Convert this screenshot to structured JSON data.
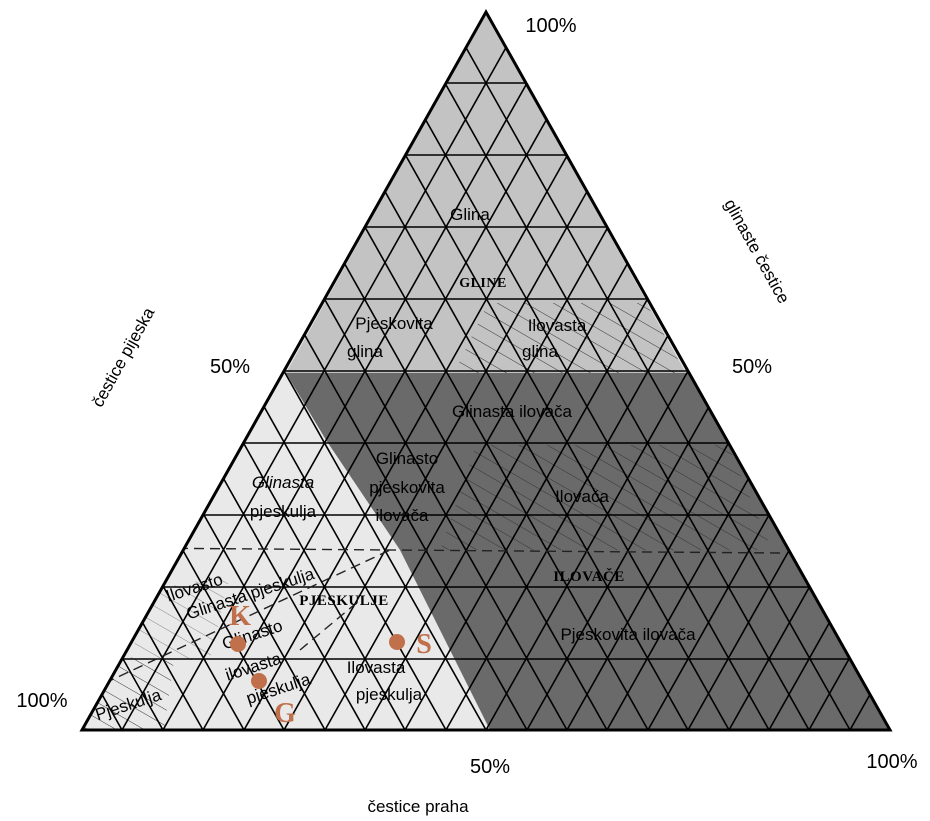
{
  "axes": {
    "top_percent": "100%",
    "left_mid_percent": "50%",
    "right_mid_percent": "50%",
    "bottom_left_percent": "100%",
    "bottom_mid_percent": "50%",
    "bottom_right_percent": "100%",
    "left_axis_title": "čestice pijeska",
    "right_axis_title": "glinaste  čestice",
    "bottom_axis_title": "čestice praha"
  },
  "groups": {
    "clays": "GLINE",
    "loams": "ILOVAČE",
    "sandy_loams": "PJESKULJE"
  },
  "regions": {
    "glina": "Glina",
    "pjeskovita_glina_1": "Pjeskovita",
    "pjeskovita_glina_2": "glina",
    "ilovasta_glina_1": "Ilovasta",
    "ilovasta_glina_2": "glina",
    "glinasta_ilovaca": "Glinasta ilovača",
    "glinasta_pjeskulja_1": "Glinasta",
    "glinasta_pjeskulja_2": "pjeskulja",
    "glinasto_pjeskovita_1": "Glinasto",
    "glinasto_pjeskovita_2": "pjeskovita",
    "glinasto_pjeskovita_3": "ilovača",
    "ilovaca": "Ilovača",
    "pjeskovita_ilovaca": "Pjeskovita ilovača",
    "ilovasto_glinasta_1": "Ilovasto",
    "ilovasto_glinasta_2": "Glinasta pjeskulja",
    "glinasto_ilovasta_1": "Glinasto",
    "glinasto_ilovasta_2": "ilovasta",
    "glinasto_ilovasta_3": "pjeskulja",
    "ilovasta_pjeskulja_1": "Ilovasta",
    "ilovasta_pjeskulja_2": "pjeskulja",
    "pjeskulja": "Pjeskulja"
  },
  "points": {
    "k": "K",
    "s": "S",
    "g": "G"
  },
  "colors": {
    "clay_fill": "#c3c3c3",
    "loam_fill": "#6a6a6a",
    "sand_fill": "#e9e9e9",
    "point_color": "#c0704a"
  }
}
